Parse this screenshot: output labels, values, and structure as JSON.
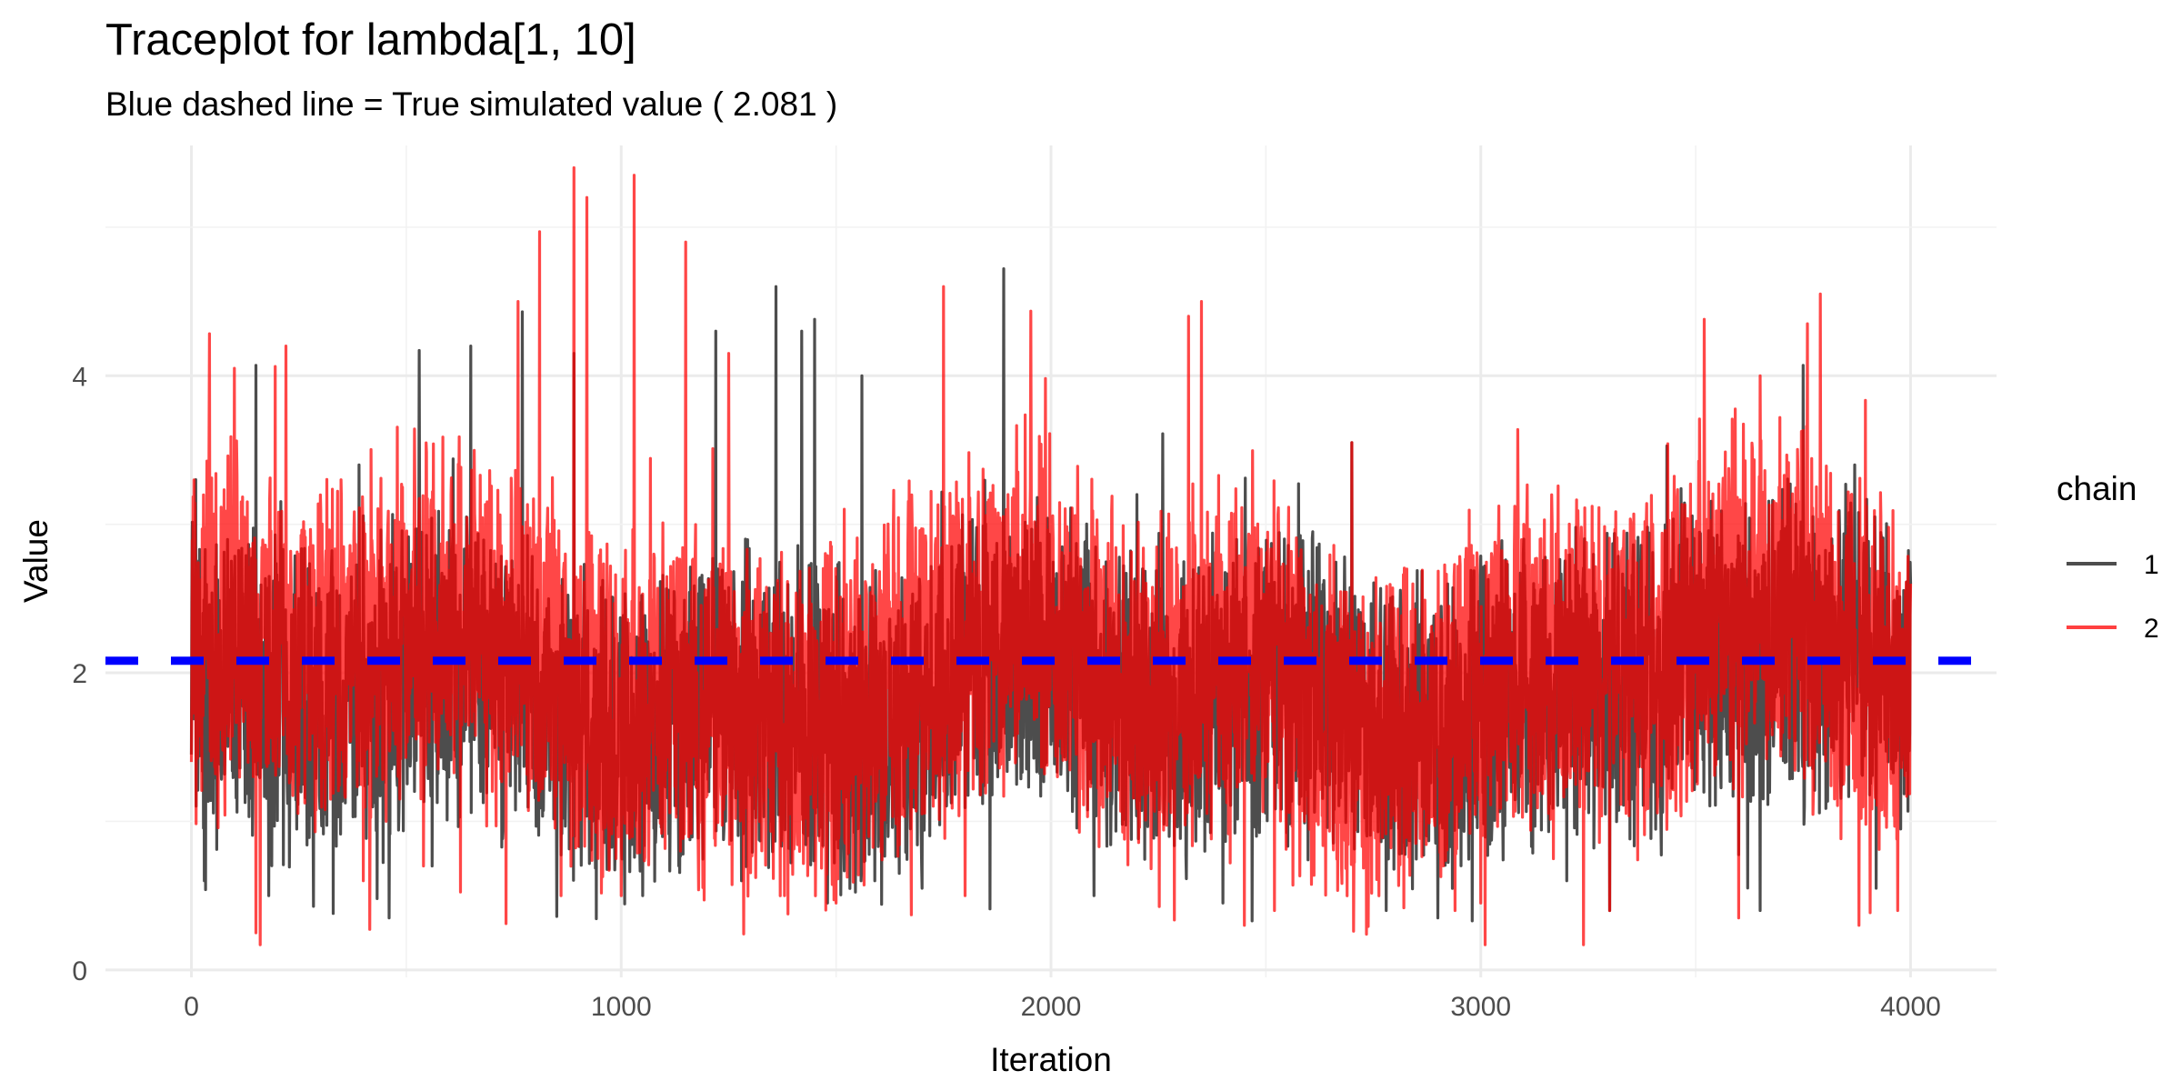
{
  "chart_data": {
    "type": "line",
    "title": "Traceplot for lambda[1, 10]",
    "subtitle": "Blue dashed line = True simulated value ( 2.081 )",
    "xlabel": "Iteration",
    "ylabel": "Value",
    "xlim": [
      -200,
      4200
    ],
    "ylim": [
      -0.05,
      5.55
    ],
    "x_ticks": [
      0,
      1000,
      2000,
      3000,
      4000
    ],
    "x_tick_labels": [
      "0",
      "1000",
      "2000",
      "3000",
      "4000"
    ],
    "y_ticks": [
      0,
      2,
      4
    ],
    "y_tick_labels": [
      "0",
      "2",
      "4"
    ],
    "grid": true,
    "reference_line": {
      "value": 2.081,
      "style": "dashed",
      "color": "#0000ff"
    },
    "legend": {
      "title": "chain",
      "position": "right"
    },
    "n_iterations": 4000,
    "series": [
      {
        "name": "1",
        "color": "#4d4d4d",
        "summary": {
          "min": 0.33,
          "max": 4.72,
          "typical_low": 0.8,
          "typical_high": 2.8
        },
        "anchors": [
          [
            0,
            1.45
          ],
          [
            10,
            3.3
          ],
          [
            30,
            0.6
          ],
          [
            60,
            2.2
          ],
          [
            150,
            4.07
          ],
          [
            180,
            0.5
          ],
          [
            330,
            0.38
          ],
          [
            390,
            3.4
          ],
          [
            460,
            0.35
          ],
          [
            530,
            4.17
          ],
          [
            560,
            0.7
          ],
          [
            650,
            4.2
          ],
          [
            770,
            4.43
          ],
          [
            850,
            0.36
          ],
          [
            890,
            4.15
          ],
          [
            1050,
            0.5
          ],
          [
            1220,
            4.3
          ],
          [
            1280,
            0.6
          ],
          [
            1360,
            4.6
          ],
          [
            1380,
            1.4
          ],
          [
            1420,
            4.3
          ],
          [
            1440,
            1.5
          ],
          [
            1450,
            4.38
          ],
          [
            1480,
            0.45
          ],
          [
            1560,
            4.0
          ],
          [
            1590,
            0.6
          ],
          [
            1700,
            0.55
          ],
          [
            1890,
            4.72
          ],
          [
            2100,
            0.5
          ],
          [
            2200,
            3.2
          ],
          [
            2400,
            0.45
          ],
          [
            2700,
            3.55
          ],
          [
            2780,
            0.4
          ],
          [
            2900,
            0.35
          ],
          [
            2980,
            0.33
          ],
          [
            3100,
            2.9
          ],
          [
            3200,
            0.6
          ],
          [
            3300,
            0.4
          ],
          [
            3480,
            2.9
          ],
          [
            3650,
            0.4
          ],
          [
            3750,
            4.07
          ],
          [
            3870,
            3.4
          ],
          [
            3920,
            0.55
          ],
          [
            4000,
            2.6
          ]
        ]
      },
      {
        "name": "2",
        "color": "#ff0000",
        "summary": {
          "min": 0.17,
          "max": 5.4,
          "typical_low": 0.9,
          "typical_high": 3.2
        },
        "anchors": [
          [
            0,
            1.4
          ],
          [
            20,
            2.5
          ],
          [
            100,
            4.05
          ],
          [
            150,
            0.25
          ],
          [
            160,
            0.17
          ],
          [
            220,
            4.2
          ],
          [
            400,
            0.6
          ],
          [
            540,
            4.35
          ],
          [
            540,
            0.7
          ],
          [
            760,
            4.5
          ],
          [
            810,
            4.97
          ],
          [
            860,
            0.5
          ],
          [
            890,
            5.4
          ],
          [
            920,
            5.2
          ],
          [
            1000,
            0.5
          ],
          [
            1030,
            5.35
          ],
          [
            1150,
            4.9
          ],
          [
            1250,
            4.15
          ],
          [
            1380,
            0.5
          ],
          [
            1500,
            0.45
          ],
          [
            1750,
            4.6
          ],
          [
            1800,
            0.5
          ],
          [
            1900,
            3.2
          ],
          [
            2050,
            3.0
          ],
          [
            2320,
            4.4
          ],
          [
            2350,
            4.5
          ],
          [
            2450,
            0.3
          ],
          [
            2520,
            0.4
          ],
          [
            2700,
            3.55
          ],
          [
            2940,
            0.4
          ],
          [
            3000,
            0.45
          ],
          [
            3100,
            3.0
          ],
          [
            3300,
            0.4
          ],
          [
            3520,
            4.38
          ],
          [
            3600,
            0.35
          ],
          [
            3650,
            4.0
          ],
          [
            3760,
            4.35
          ],
          [
            3790,
            4.55
          ],
          [
            3880,
            0.3
          ],
          [
            3970,
            0.4
          ],
          [
            4000,
            2.6
          ]
        ]
      }
    ]
  }
}
